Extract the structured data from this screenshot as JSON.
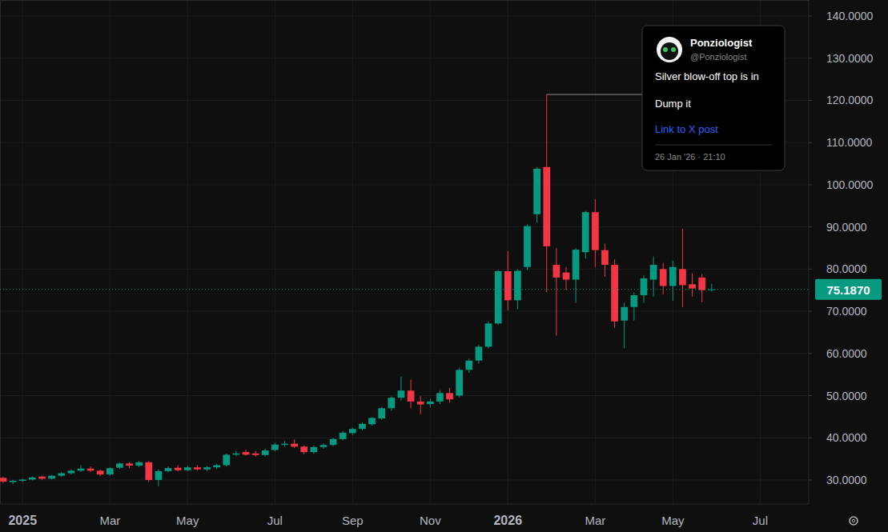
{
  "chart_data": {
    "type": "candlestick",
    "grid": true,
    "categories": [
      null,
      null,
      "2025",
      null,
      null,
      null,
      null,
      null,
      null,
      null,
      null,
      "Mar",
      null,
      null,
      null,
      null,
      null,
      null,
      null,
      "May",
      null,
      null,
      null,
      null,
      null,
      null,
      null,
      null,
      "Jul",
      null,
      null,
      null,
      null,
      null,
      null,
      null,
      "Sep",
      null,
      null,
      null,
      null,
      null,
      null,
      null,
      "Nov",
      null,
      null,
      null,
      null,
      null,
      null,
      null,
      "2026",
      null,
      null,
      null,
      null,
      null,
      null,
      null,
      null,
      "Mar",
      null,
      null,
      null,
      null,
      null,
      null,
      null,
      "May",
      null,
      null,
      null,
      null,
      null,
      null,
      null,
      null,
      "Jul",
      null,
      null,
      null,
      null
    ],
    "open": [
      30.5,
      29.5,
      29.8,
      30.1,
      30.8,
      30.3,
      31.0,
      31.6,
      32.2,
      32.7,
      32.2,
      31.3,
      32.9,
      33.9,
      33.4,
      34.2,
      30.0,
      32.1,
      32.9,
      32.3,
      33.0,
      32.5,
      33.0,
      33.5,
      36.0,
      36.6,
      36.3,
      35.9,
      37.1,
      38.3,
      38.6,
      37.9,
      36.6,
      37.8,
      38.3,
      39.7,
      41.1,
      42.1,
      43.2,
      44.6,
      47.0,
      49.5,
      51.2,
      48.6,
      48.0,
      48.6,
      50.6,
      50.0,
      56.1,
      58.3,
      61.6,
      67.1,
      79.5,
      72.6,
      80.5,
      93.0,
      104.2,
      81.0,
      79.2,
      77.5,
      84.0,
      93.5,
      84.5,
      81.0,
      67.8,
      71.0,
      73.8,
      77.5,
      80.0,
      76.0,
      80.0,
      76.4,
      78.0,
      75.0,
      null,
      null,
      null,
      null,
      null,
      null,
      null,
      null,
      null
    ],
    "high": [
      30.8,
      30.0,
      30.3,
      30.8,
      31.0,
      31.2,
      31.9,
      32.5,
      33.5,
      33.2,
      32.5,
      33.0,
      34.1,
      34.2,
      34.5,
      34.5,
      32.5,
      33.2,
      33.5,
      33.4,
      33.5,
      33.3,
      33.8,
      36.2,
      36.9,
      37.2,
      36.9,
      37.4,
      38.8,
      39.2,
      39.6,
      38.2,
      38.1,
      38.7,
      40.0,
      41.6,
      42.4,
      43.6,
      44.9,
      47.3,
      49.8,
      54.5,
      53.8,
      49.9,
      49.2,
      51.3,
      51.8,
      56.5,
      58.8,
      62.0,
      67.6,
      79.8,
      84.3,
      80.0,
      90.6,
      104.2,
      121.4,
      85.0,
      80.5,
      85.0,
      93.8,
      96.6,
      86.0,
      82.3,
      72.0,
      74.5,
      78.5,
      83.0,
      81.5,
      82.0,
      89.5,
      79.0,
      78.8,
      76.5,
      null,
      null,
      null,
      null,
      null,
      null,
      null,
      null,
      null
    ],
    "low": [
      29.3,
      29.0,
      29.5,
      29.9,
      30.0,
      30.1,
      30.8,
      31.3,
      31.9,
      31.9,
      30.9,
      31.0,
      32.6,
      32.8,
      33.0,
      29.5,
      28.5,
      31.8,
      32.0,
      32.1,
      32.2,
      32.1,
      32.6,
      33.2,
      35.6,
      35.8,
      35.5,
      35.6,
      36.8,
      37.9,
      37.6,
      36.1,
      36.2,
      37.4,
      38.0,
      39.4,
      40.6,
      41.8,
      42.8,
      44.3,
      46.4,
      48.8,
      47.0,
      45.6,
      47.2,
      48.0,
      48.3,
      49.6,
      55.4,
      57.6,
      61.2,
      66.8,
      70.2,
      70.5,
      79.8,
      91.0,
      74.5,
      64.2,
      75.0,
      72.0,
      82.5,
      80.5,
      78.2,
      66.0,
      61.2,
      67.8,
      72.0,
      73.5,
      74.0,
      72.5,
      71.0,
      73.5,
      72.2,
      74.7,
      null,
      null,
      null,
      null,
      null,
      null,
      null,
      null,
      null
    ],
    "close": [
      29.6,
      29.8,
      30.1,
      30.6,
      30.3,
      31.0,
      31.6,
      32.2,
      32.7,
      32.2,
      31.3,
      32.8,
      33.9,
      33.4,
      34.2,
      30.0,
      32.1,
      32.8,
      32.3,
      33.0,
      32.5,
      33.0,
      33.5,
      36.0,
      36.3,
      36.0,
      35.9,
      37.0,
      38.4,
      38.6,
      37.9,
      36.6,
      37.8,
      38.3,
      39.7,
      41.2,
      42.1,
      43.3,
      44.7,
      47.0,
      49.5,
      51.2,
      48.6,
      47.9,
      48.6,
      50.6,
      49.1,
      56.1,
      58.3,
      61.6,
      67.1,
      79.5,
      72.6,
      79.6,
      90.2,
      103.8,
      85.4,
      78.0,
      77.5,
      84.6,
      93.5,
      84.5,
      81.0,
      67.6,
      71.0,
      73.8,
      77.8,
      81.0,
      76.0,
      80.5,
      76.2,
      75.4,
      75.0,
      75.187,
      null,
      null,
      null,
      null,
      null,
      null,
      null,
      null,
      null
    ],
    "ylim": [
      24.3,
      143.8
    ],
    "yticks": [
      {
        "value": 30,
        "label": "30.0000"
      },
      {
        "value": 40,
        "label": "40.0000"
      },
      {
        "value": 50,
        "label": "50.0000"
      },
      {
        "value": 60,
        "label": "60.0000"
      },
      {
        "value": 70,
        "label": "70.0000"
      },
      {
        "value": 80,
        "label": "80.0000"
      },
      {
        "value": 90,
        "label": "90.0000"
      },
      {
        "value": 100,
        "label": "100.0000"
      },
      {
        "value": 110,
        "label": "110.0000"
      },
      {
        "value": 120,
        "label": "120.0000"
      },
      {
        "value": 130,
        "label": "130.0000"
      },
      {
        "value": 140,
        "label": "140.0000"
      }
    ],
    "last_price": {
      "value": 75.187,
      "label": "75.1870"
    },
    "annotation": {
      "name": "Ponziologist",
      "handle": "@Ponziologist",
      "lines": [
        "Silver blow-off top is in",
        "Dump it"
      ],
      "link": "Link to X post",
      "date": "26 Jan '26 · 21:10"
    }
  }
}
